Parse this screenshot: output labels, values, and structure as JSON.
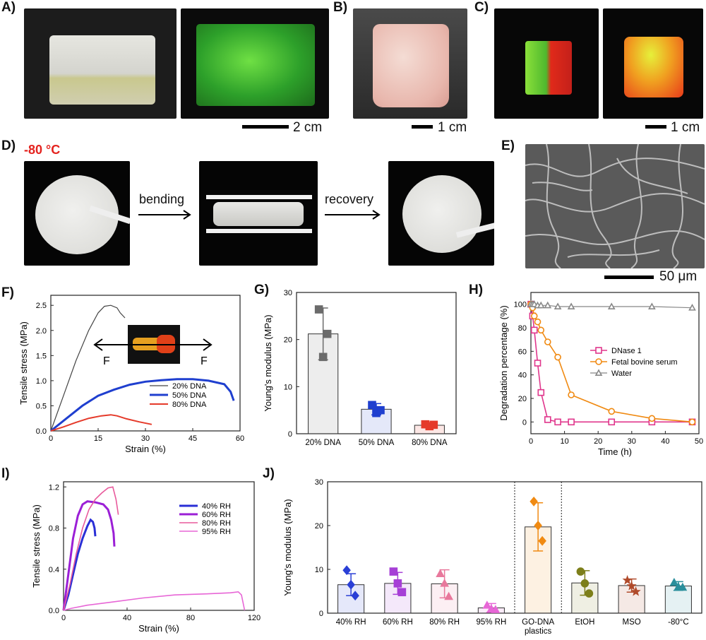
{
  "panel_labels": {
    "A": "A)",
    "B": "B)",
    "C": "C)",
    "D": "D)",
    "E": "E)",
    "F": "F)",
    "G": "G)",
    "H": "H)",
    "I": "I)",
    "J": "J)"
  },
  "scalebars": {
    "A": "2 cm",
    "B": "1 cm",
    "C": "1 cm",
    "E": "50 μm"
  },
  "panel_d": {
    "temperature": "-80 °C",
    "step1": "bending",
    "step2": "recovery"
  },
  "chart_data": [
    {
      "id": "F",
      "type": "line",
      "xlabel": "Strain (%)",
      "ylabel": "Tensile stress (MPa)",
      "xlim": [
        0,
        60
      ],
      "ylim": [
        0,
        2.7
      ],
      "xticks": [
        "0",
        "15",
        "30",
        "45",
        "60"
      ],
      "yticks": [
        "0.0",
        "0.5",
        "1.0",
        "1.5",
        "2.0",
        "2.5"
      ],
      "inset_force_label": "F",
      "series": [
        {
          "name": "20% DNA",
          "color": "#444444",
          "x": [
            0,
            4,
            8,
            12,
            15,
            17,
            19,
            21,
            22,
            23.5
          ],
          "y": [
            0,
            0.7,
            1.4,
            2.0,
            2.35,
            2.48,
            2.5,
            2.45,
            2.35,
            2.25
          ]
        },
        {
          "name": "50% DNA",
          "color": "#1f3fcf",
          "x": [
            0,
            5,
            10,
            15,
            20,
            25,
            30,
            35,
            40,
            45,
            50,
            55,
            57,
            58
          ],
          "y": [
            0,
            0.25,
            0.5,
            0.7,
            0.82,
            0.92,
            0.98,
            1.01,
            1.03,
            1.03,
            1.0,
            0.93,
            0.78,
            0.6
          ]
        },
        {
          "name": "80% DNA",
          "color": "#e53a2a",
          "x": [
            0,
            4,
            8,
            12,
            16,
            19,
            21,
            24,
            28,
            32
          ],
          "y": [
            0,
            0.08,
            0.17,
            0.25,
            0.3,
            0.32,
            0.3,
            0.24,
            0.18,
            0.13
          ]
        }
      ]
    },
    {
      "id": "G",
      "type": "bar",
      "categories": [
        "20% DNA",
        "50% DNA",
        "80% DNA"
      ],
      "values": [
        21.2,
        5.2,
        1.8
      ],
      "errors": [
        5.5,
        1.2,
        0.4
      ],
      "points": [
        [
          26.4,
          16.3,
          21.2
        ],
        [
          6.1,
          4.4,
          5.0
        ],
        [
          2.0,
          1.6,
          1.9
        ]
      ],
      "colors": [
        "#6b6b6b",
        "#1f3fcf",
        "#e53a2a"
      ],
      "ylabel": "Young's modulus (MPa)",
      "ylim": [
        0,
        30
      ],
      "yticks": [
        "0",
        "10",
        "20",
        "30"
      ]
    },
    {
      "id": "H",
      "type": "line",
      "xlabel": "Time (h)",
      "ylabel": "Degradation percentage (%)",
      "xlim": [
        0,
        50
      ],
      "ylim": [
        -10,
        110
      ],
      "xticks": [
        "0",
        "10",
        "20",
        "30",
        "40",
        "50"
      ],
      "yticks": [
        "0",
        "20",
        "40",
        "60",
        "80",
        "100"
      ],
      "series": [
        {
          "name": "DNase 1",
          "color": "#e0368c",
          "marker": "square",
          "x": [
            0,
            0.5,
            1,
            2,
            3,
            5,
            8,
            12,
            24,
            36,
            48
          ],
          "y": [
            100,
            90,
            78,
            50,
            25,
            2,
            0,
            0,
            0,
            0,
            0
          ]
        },
        {
          "name": "Fetal bovine serum",
          "color": "#f08a12",
          "marker": "circle",
          "x": [
            0,
            0.5,
            1,
            2,
            3,
            5,
            8,
            12,
            24,
            36,
            48
          ],
          "y": [
            100,
            97,
            90,
            85,
            78,
            68,
            55,
            23,
            9,
            3,
            0
          ]
        },
        {
          "name": "Water",
          "color": "#888888",
          "marker": "triangle",
          "x": [
            0,
            0.5,
            1,
            2,
            3,
            5,
            8,
            12,
            24,
            36,
            48
          ],
          "y": [
            100,
            100,
            100,
            99,
            99,
            99,
            98,
            98,
            98,
            98,
            97
          ]
        }
      ]
    },
    {
      "id": "I",
      "type": "line",
      "xlabel": "Strain (%)",
      "ylabel": "Tensile stress (MPa)",
      "xlim": [
        0,
        120
      ],
      "ylim": [
        0,
        1.25
      ],
      "xticks": [
        "0",
        "40",
        "80",
        "120"
      ],
      "yticks": [
        "0.0",
        "0.4",
        "0.8",
        "1.2"
      ],
      "series": [
        {
          "name": "40% RH",
          "color": "#2a2fd6",
          "x": [
            0,
            3,
            6,
            9,
            12,
            15,
            17,
            18.5,
            19.5,
            20
          ],
          "y": [
            0,
            0.15,
            0.35,
            0.55,
            0.7,
            0.82,
            0.88,
            0.86,
            0.8,
            0.72
          ]
        },
        {
          "name": "60% RH",
          "color": "#9b1fd6",
          "x": [
            0,
            3,
            6,
            9,
            12,
            15,
            20,
            25,
            28,
            30,
            31.5,
            32
          ],
          "y": [
            0,
            0.35,
            0.7,
            0.92,
            1.03,
            1.06,
            1.05,
            1.03,
            0.98,
            0.88,
            0.75,
            0.62
          ]
        },
        {
          "name": "80% RH",
          "color": "#e85a9c",
          "x": [
            0,
            4,
            8,
            12,
            16,
            20,
            24,
            28,
            31,
            33,
            34.5
          ],
          "y": [
            0,
            0.25,
            0.55,
            0.8,
            0.98,
            1.08,
            1.14,
            1.19,
            1.2,
            1.08,
            0.93
          ]
        },
        {
          "name": "95% RH",
          "color": "#e766d6",
          "x": [
            0,
            5,
            15,
            30,
            50,
            70,
            90,
            105,
            110,
            112,
            114
          ],
          "y": [
            0,
            0.02,
            0.05,
            0.08,
            0.12,
            0.15,
            0.16,
            0.17,
            0.18,
            0.15,
            0.0
          ]
        }
      ]
    },
    {
      "id": "J",
      "type": "bar",
      "categories": [
        "40% RH",
        "60% RH",
        "80% RH",
        "95% RH",
        "GO-DNA plastics",
        "EtOH",
        "MSO",
        "-80°C"
      ],
      "category_lines": [
        [
          "40% RH"
        ],
        [
          "60% RH"
        ],
        [
          "80% RH"
        ],
        [
          "95% RH"
        ],
        [
          "GO-DNA",
          "plastics"
        ],
        [
          "EtOH"
        ],
        [
          "MSO"
        ],
        [
          "-80°C"
        ]
      ],
      "values": [
        6.5,
        6.8,
        6.7,
        1.2,
        19.7,
        6.9,
        6.3,
        6.2
      ],
      "errors": [
        2.5,
        2.5,
        3.2,
        1.0,
        5.5,
        2.8,
        1.5,
        1.0
      ],
      "points": [
        [
          9.8,
          6.5,
          4.0
        ],
        [
          9.5,
          6.8,
          4.8
        ],
        [
          9.0,
          6.8,
          3.8
        ],
        [
          1.8,
          1.0,
          0.8
        ],
        [
          25.5,
          20.0,
          16.5
        ],
        [
          9.5,
          6.8,
          4.5
        ],
        [
          7.5,
          6.2,
          4.9
        ],
        [
          7.0,
          6.0,
          5.9
        ]
      ],
      "markers": [
        "diamond",
        "square",
        "triangle",
        "triangle",
        "diamond",
        "circle",
        "star",
        "triangle"
      ],
      "colors": [
        "#2a3fd6",
        "#a63fd6",
        "#e8789c",
        "#e766d6",
        "#f08a12",
        "#7d7f1a",
        "#b04a2a",
        "#2a8f9c"
      ],
      "ylabel": "Young's modulus (MPa)",
      "ylim": [
        0,
        30
      ],
      "yticks": [
        "0",
        "10",
        "20",
        "30"
      ]
    }
  ]
}
